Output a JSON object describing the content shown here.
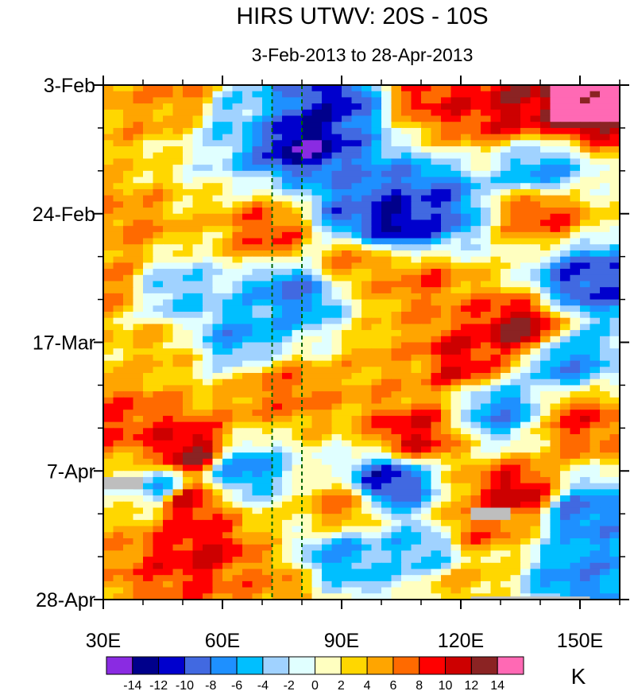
{
  "chart_data": {
    "type": "heatmap",
    "title": "HIRS UTWV: 20S - 10S",
    "subtitle": "3-Feb-2013 to 28-Apr-2013",
    "x_axis": {
      "range_deg_east": [
        30,
        160
      ],
      "ticks": [
        {
          "value": 30,
          "label": "30E"
        },
        {
          "value": 60,
          "label": "60E"
        },
        {
          "value": 90,
          "label": "90E"
        },
        {
          "value": 120,
          "label": "120E"
        },
        {
          "value": 150,
          "label": "150E"
        }
      ],
      "minor_step": 10
    },
    "y_axis": {
      "range_days_from_top": [
        0,
        84
      ],
      "ticks": [
        {
          "value": 0,
          "label": "3-Feb"
        },
        {
          "value": 21,
          "label": "24-Feb"
        },
        {
          "value": 42,
          "label": "17-Mar"
        },
        {
          "value": 63,
          "label": "7-Apr"
        },
        {
          "value": 84,
          "label": "28-Apr"
        }
      ],
      "minor_step": 7
    },
    "reference_lines_deg_east": [
      72.5,
      80
    ],
    "colorbar": {
      "unit": "K",
      "levels": [
        -16,
        -14,
        -12,
        -10,
        -8,
        -6,
        -4,
        -2,
        0,
        2,
        4,
        6,
        8,
        10,
        12,
        14
      ],
      "labels": [
        "-14",
        "-12",
        "-10",
        "-8",
        "-6",
        "-4",
        "-2",
        "0",
        "2",
        "4",
        "6",
        "8",
        "10",
        "12",
        "14"
      ],
      "colors": [
        "#8a2be2",
        "#00008b",
        "#0000cd",
        "#4169e1",
        "#1e90ff",
        "#00bfff",
        "#a0d2ff",
        "#e0ffff",
        "#ffffc0",
        "#ffd700",
        "#ffa500",
        "#ff6a00",
        "#ff0000",
        "#cd0000",
        "#8b2323",
        "#ff69b4"
      ],
      "missing_color": "#bebebe"
    },
    "grid_resolution": {
      "lon_step_deg": 2.5,
      "time_step_days": 1
    },
    "anomaly_centers": [
      {
        "lon": 150,
        "day": 3,
        "value": 16
      },
      {
        "lon": 132,
        "day": 3,
        "value": 11
      },
      {
        "lon": 123,
        "day": 2,
        "value": 9
      },
      {
        "lon": 113,
        "day": 1,
        "value": 9
      },
      {
        "lon": 88,
        "day": 2,
        "value": -11
      },
      {
        "lon": 80,
        "day": 9,
        "value": -13
      },
      {
        "lon": 64,
        "day": 5,
        "value": -4
      },
      {
        "lon": 40,
        "day": 3,
        "value": 5
      },
      {
        "lon": 49,
        "day": 2,
        "value": 6
      },
      {
        "lon": 103,
        "day": 22,
        "value": -13
      },
      {
        "lon": 112,
        "day": 20,
        "value": -10
      },
      {
        "lon": 95,
        "day": 21,
        "value": -9
      },
      {
        "lon": 140,
        "day": 14,
        "value": -6
      },
      {
        "lon": 140,
        "day": 21,
        "value": 8
      },
      {
        "lon": 36,
        "day": 23,
        "value": 6
      },
      {
        "lon": 72,
        "day": 24,
        "value": 8
      },
      {
        "lon": 93,
        "day": 29,
        "value": 6
      },
      {
        "lon": 110,
        "day": 32,
        "value": 7
      },
      {
        "lon": 152,
        "day": 32,
        "value": -10
      },
      {
        "lon": 78,
        "day": 34,
        "value": -8
      },
      {
        "lon": 48,
        "day": 34,
        "value": -4
      },
      {
        "lon": 30,
        "day": 33,
        "value": 6
      },
      {
        "lon": 135,
        "day": 40,
        "value": 12
      },
      {
        "lon": 120,
        "day": 45,
        "value": 10
      },
      {
        "lon": 105,
        "day": 46,
        "value": 5
      },
      {
        "lon": 146,
        "day": 45,
        "value": -7
      },
      {
        "lon": 64,
        "day": 41,
        "value": -6
      },
      {
        "lon": 43,
        "day": 43,
        "value": 4
      },
      {
        "lon": 36,
        "day": 55,
        "value": 8
      },
      {
        "lon": 75,
        "day": 50,
        "value": 7
      },
      {
        "lon": 108,
        "day": 57,
        "value": 10
      },
      {
        "lon": 130,
        "day": 53,
        "value": -7
      },
      {
        "lon": 150,
        "day": 55,
        "value": 8
      },
      {
        "lon": 52,
        "day": 60,
        "value": 12
      },
      {
        "lon": 45,
        "day": 66,
        "value": -5
      },
      {
        "lon": 65,
        "day": 63,
        "value": -7
      },
      {
        "lon": 102,
        "day": 65,
        "value": -11
      },
      {
        "lon": 134,
        "day": 67,
        "value": 11
      },
      {
        "lon": 90,
        "day": 69,
        "value": 6
      },
      {
        "lon": 50,
        "day": 68,
        "value": 11
      },
      {
        "lon": 125,
        "day": 72,
        "value": 7
      },
      {
        "lon": 150,
        "day": 70,
        "value": -8
      },
      {
        "lon": 55,
        "day": 76,
        "value": 10
      },
      {
        "lon": 90,
        "day": 77,
        "value": -6
      },
      {
        "lon": 110,
        "day": 76,
        "value": -5
      },
      {
        "lon": 150,
        "day": 80,
        "value": -7
      },
      {
        "lon": 72,
        "day": 82,
        "value": 6
      },
      {
        "lon": 120,
        "day": 82,
        "value": 4
      }
    ],
    "missing_regions": [
      {
        "lon_range": [
          30,
          40
        ],
        "day_range": [
          64,
          66
        ]
      },
      {
        "lon_range": [
          122.5,
          132.5
        ],
        "day_range": [
          69,
          71
        ]
      },
      {
        "lon_range": [
          122.5,
          152.5
        ],
        "day_range": [
          83.5,
          84
        ]
      }
    ]
  }
}
